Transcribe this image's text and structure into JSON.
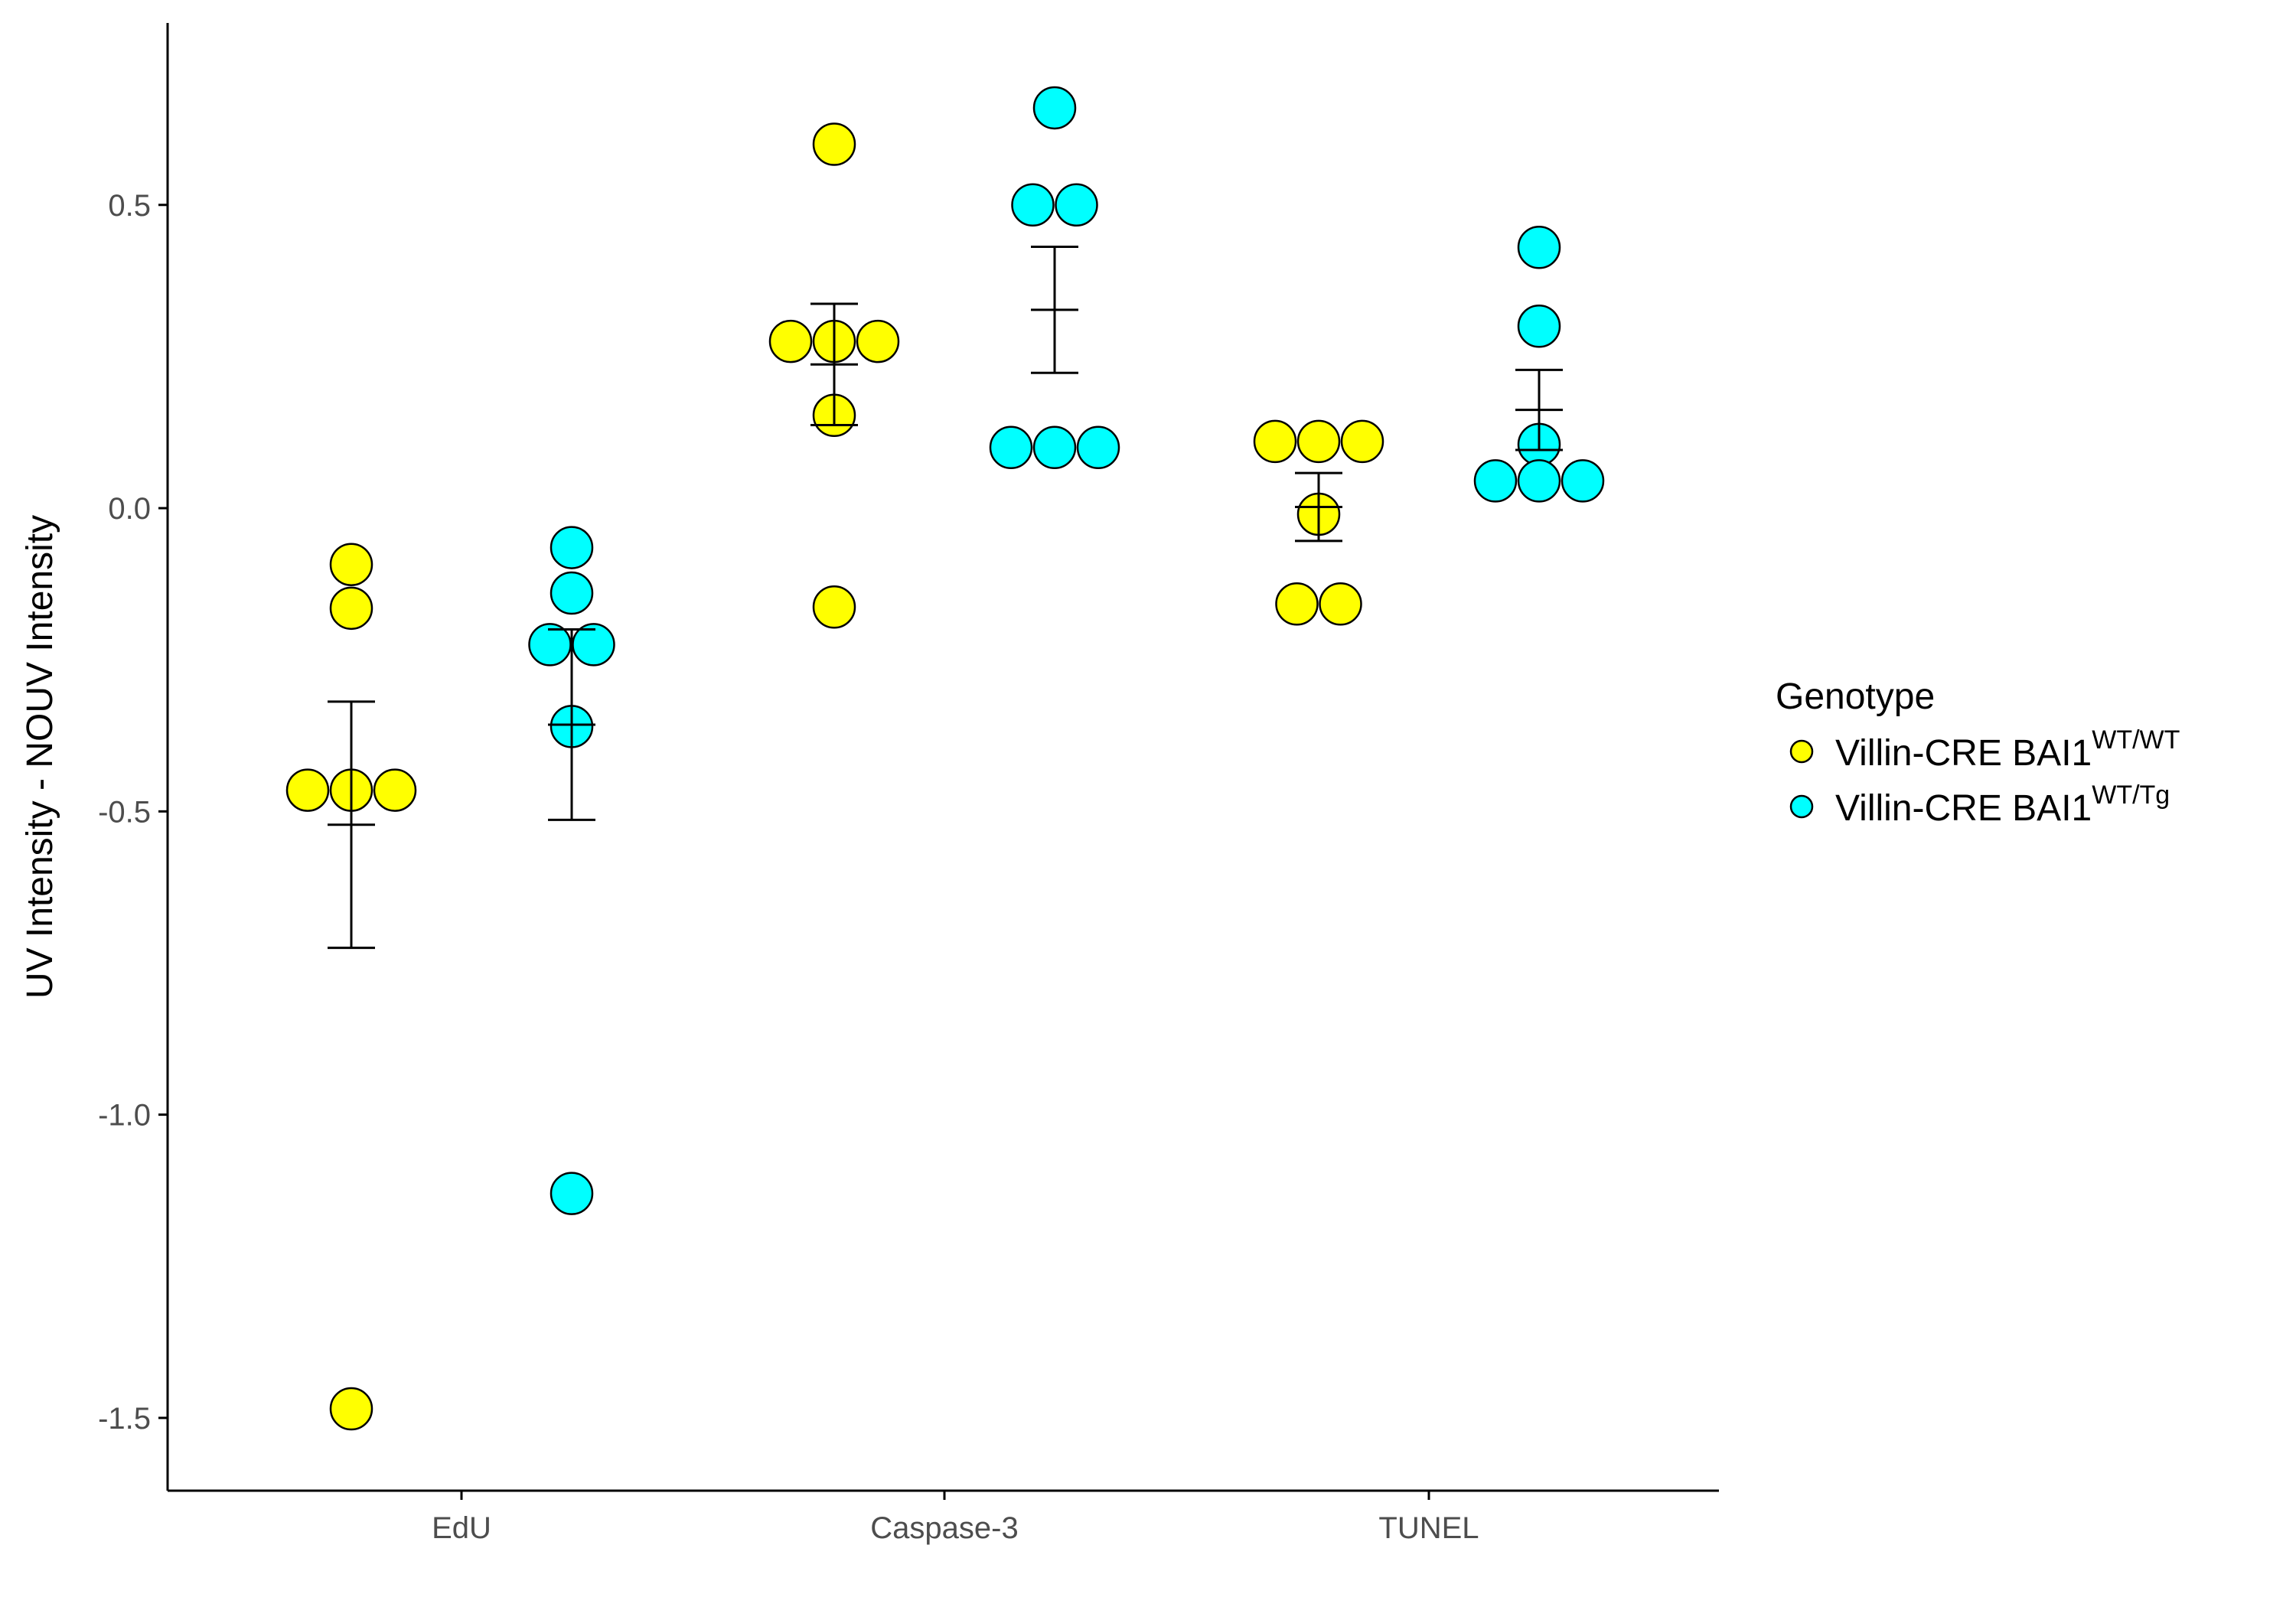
{
  "chart_data": {
    "type": "scatter",
    "title": "",
    "xlabel": "",
    "ylabel": "UV Intensity - NOUV Intensity",
    "categories": [
      "EdU",
      "Caspase-3",
      "TUNEL"
    ],
    "ylim": [
      -1.62,
      0.8
    ],
    "yticks": [
      0.5,
      0.0,
      -0.5,
      -1.0,
      -1.5
    ],
    "ytick_labels": [
      "0.5",
      "0.0",
      "-0.5",
      "-1.0",
      "-1.5"
    ],
    "grid": false,
    "legend": {
      "title": "Genotype",
      "position": "right",
      "entries": [
        {
          "base": "Villin-CRE BAI1",
          "sup": "WT/WT"
        },
        {
          "base": "Villin-CRE BAI1",
          "sup": "WT/Tg"
        }
      ]
    },
    "series": [
      {
        "name": "Villin-CRE BAI1 WT/WT",
        "color": "#ffff00",
        "points": {
          "EdU": [
            -0.093,
            -0.165,
            -0.465,
            -0.465,
            -0.465,
            -1.485
          ],
          "Caspase-3": [
            0.6,
            0.275,
            0.275,
            0.275,
            0.153,
            -0.163
          ],
          "TUNEL": [
            0.11,
            0.11,
            0.11,
            -0.01,
            -0.158,
            -0.158
          ]
        },
        "mean": {
          "EdU": -0.522,
          "Caspase-3": 0.237,
          "TUNEL": 0.002
        },
        "se": {
          "EdU": 0.203,
          "Caspase-3": 0.1,
          "TUNEL": 0.056
        }
      },
      {
        "name": "Villin-CRE BAI1 WT/Tg",
        "color": "#00ffff",
        "points": {
          "EdU": [
            -0.065,
            -0.14,
            -0.225,
            -0.225,
            -0.36,
            -1.13
          ],
          "Caspase-3": [
            0.66,
            0.5,
            0.5,
            0.1,
            0.1,
            0.1
          ],
          "TUNEL": [
            0.43,
            0.3,
            0.105,
            0.045,
            0.045,
            0.045
          ]
        },
        "mean": {
          "EdU": -0.357,
          "Caspase-3": 0.327,
          "TUNEL": 0.162
        },
        "se": {
          "EdU": 0.157,
          "Caspase-3": 0.104,
          "TUNEL": 0.066
        }
      }
    ]
  }
}
